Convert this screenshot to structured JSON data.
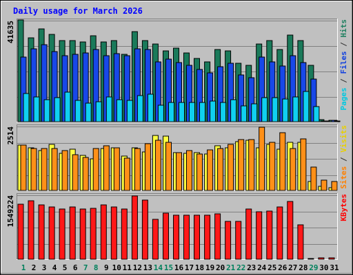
{
  "chart_data": {
    "type": "bar",
    "title": "Daily usage for March 2026",
    "days": [
      "1",
      "2",
      "3",
      "4",
      "5",
      "6",
      "7",
      "8",
      "9",
      "10",
      "11",
      "12",
      "13",
      "14",
      "15",
      "16",
      "17",
      "18",
      "19",
      "20",
      "21",
      "22",
      "23",
      "24",
      "25",
      "26",
      "27",
      "28",
      "29",
      "30",
      "31"
    ],
    "day_colors": [
      "#00805c",
      "#000000",
      "#000000",
      "#000000",
      "#000000",
      "#000000",
      "#00805c",
      "#00805c",
      "#000000",
      "#000000",
      "#000000",
      "#000000",
      "#000000",
      "#00805c",
      "#00805c",
      "#000000",
      "#000000",
      "#000000",
      "#000000",
      "#000000",
      "#00805c",
      "#00805c",
      "#000000",
      "#000000",
      "#000000",
      "#000000",
      "#000000",
      "#000000",
      "#00805c",
      "#000000",
      "#000000"
    ],
    "panels": [
      {
        "id": "hits",
        "max_label": "41635",
        "ymax": 41635,
        "legend": [
          {
            "text": "Pages",
            "color": "#00c8e0"
          },
          {
            "text": " / ",
            "color": "#303030"
          },
          {
            "text": "Files",
            "color": "#1040e0"
          },
          {
            "text": " / ",
            "color": "#303030"
          },
          {
            "text": "Hits",
            "color": "#208060"
          }
        ],
        "series": [
          {
            "name": "Hits",
            "color": "#1a7a5a",
            "values": [
              41600,
              34200,
              38000,
              35700,
              33300,
              33300,
              32600,
              35100,
              32600,
              33300,
              27600,
              36800,
              33300,
              31800,
              29100,
              30100,
              28000,
              26000,
              24600,
              29400,
              29100,
              23900,
              23200,
              31800,
              33300,
              29400,
              35400,
              33300,
              23200,
              800,
              600
            ]
          },
          {
            "name": "Files",
            "color": "#1848e8",
            "values": [
              26400,
              29700,
              31500,
              28600,
              27100,
              27600,
              28000,
              29400,
              27100,
              27900,
              27100,
              29700,
              29400,
              24600,
              25600,
              24200,
              23200,
              21400,
              20100,
              22400,
              23800,
              19000,
              18100,
              26400,
              24600,
              22800,
              27100,
              24100,
              17400,
              400,
              700
            ]
          },
          {
            "name": "Pages",
            "color": "#10d0f0",
            "values": [
              11600,
              10000,
              9100,
              9800,
              12100,
              8600,
              7700,
              8200,
              10000,
              9100,
              8700,
              10700,
              11300,
              6800,
              7800,
              7800,
              7800,
              7800,
              8300,
              8000,
              8900,
              6400,
              7400,
              9800,
              9800,
              9400,
              10200,
              12500,
              6300,
              300,
              300
            ]
          }
        ]
      },
      {
        "id": "visits",
        "max_label": "2514",
        "ymax": 2514,
        "legend": [
          {
            "text": "Sites",
            "color": "#ff8000"
          },
          {
            "text": " / ",
            "color": "#303030"
          },
          {
            "text": "Visits",
            "color": "#e8d000"
          }
        ],
        "series": [
          {
            "name": "Visits",
            "color": "#ffff40",
            "values": [
              1770,
              1650,
              1560,
              1790,
              1450,
              1600,
              1370,
              1230,
              1620,
              1650,
              1350,
              1660,
              1510,
              2140,
              2100,
              1480,
              1440,
              1480,
              1420,
              1730,
              1670,
              1890,
              1940,
              1670,
              1780,
              1610,
              1860,
              1870,
              360,
              170,
              110
            ]
          },
          {
            "name": "Sites",
            "color": "#ff9018",
            "values": [
              1770,
              1640,
              1640,
              1630,
              1540,
              1390,
              1290,
              1620,
              1730,
              1650,
              1250,
              1630,
              1830,
              1940,
              1860,
              1480,
              1540,
              1420,
              1570,
              1640,
              1790,
              1980,
              1980,
              2460,
              1870,
              2240,
              1620,
              2010,
              900,
              390,
              350
            ]
          }
        ]
      },
      {
        "id": "kbytes",
        "max_label": "1549224",
        "ymax": 1549224,
        "legend": [
          {
            "text": "KBytes",
            "color": "#ff0000"
          }
        ],
        "series": [
          {
            "name": "KBytes",
            "color": "#ff1818",
            "values": [
              1320000,
              1400000,
              1300000,
              1250000,
              1210000,
              1260000,
              1210000,
              1220000,
              1300000,
              1260000,
              1200000,
              1510000,
              1410000,
              960000,
              1100000,
              1050000,
              1050000,
              1050000,
              1060000,
              1080000,
              900000,
              910000,
              1210000,
              1130000,
              1160000,
              1250000,
              1380000,
              820000,
              20000,
              30000,
              25000
            ]
          }
        ]
      }
    ]
  }
}
